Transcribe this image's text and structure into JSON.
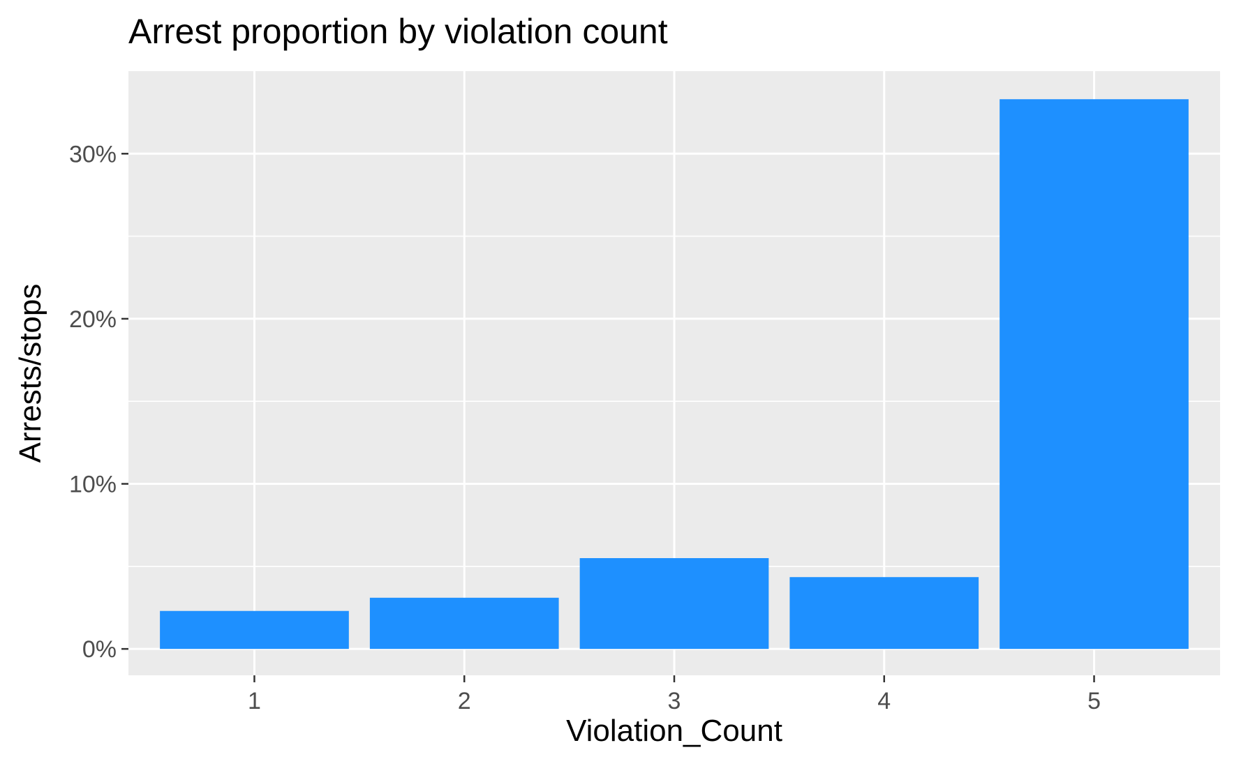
{
  "chart_data": {
    "type": "bar",
    "title": "Arrest proportion by violation count",
    "xlabel": "Violation_Count",
    "ylabel": "Arrests/stops",
    "categories": [
      "1",
      "2",
      "3",
      "4",
      "5"
    ],
    "values": [
      0.023,
      0.031,
      0.055,
      0.0435,
      0.333
    ],
    "ylim": [
      -0.016,
      0.35
    ],
    "yticks": [
      0,
      0.1,
      0.2,
      0.3
    ],
    "ytick_labels": [
      "0%",
      "10%",
      "20%",
      "30%"
    ],
    "grid": true,
    "bar_color": "#1E90FF",
    "panel_background": "#EBEBEB",
    "grid_color": "#FFFFFF"
  }
}
